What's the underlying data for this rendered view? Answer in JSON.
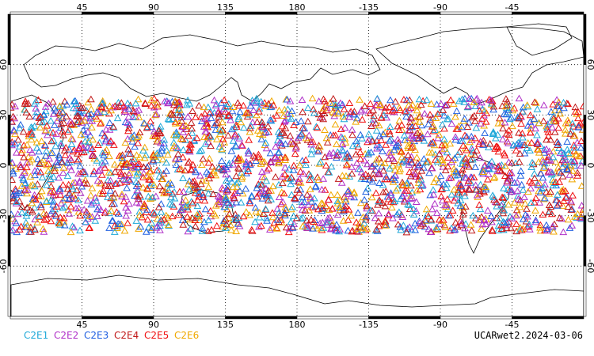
{
  "chart_data": {
    "type": "scatter",
    "marker": "triangle-open",
    "x_ticks_top": [
      "45",
      "90",
      "135",
      "180",
      "-135",
      "-90",
      "-45"
    ],
    "x_ticks_bottom": [
      "45",
      "90",
      "135",
      "180",
      "-135",
      "-90",
      "-45"
    ],
    "y_ticks_left": [
      "60",
      "30",
      "0",
      "-30",
      "-60"
    ],
    "y_ticks_right": [
      "60",
      "30",
      "0",
      "-30",
      "-60"
    ],
    "lon_range": [
      0,
      360
    ],
    "lat_range": [
      -90,
      90
    ],
    "grid": true,
    "point_lat_band": [
      -40,
      40
    ],
    "series": [
      {
        "name": "C2E1",
        "color": "#1fa8d8"
      },
      {
        "name": "C2E2",
        "color": "#b030c8"
      },
      {
        "name": "C2E3",
        "color": "#2060e0"
      },
      {
        "name": "C2E4",
        "color": "#c01818"
      },
      {
        "name": "C2E5",
        "color": "#f01010"
      },
      {
        "name": "C2E6",
        "color": "#f0a800"
      }
    ]
  },
  "caption": "UCARwet2.2024-03-06"
}
